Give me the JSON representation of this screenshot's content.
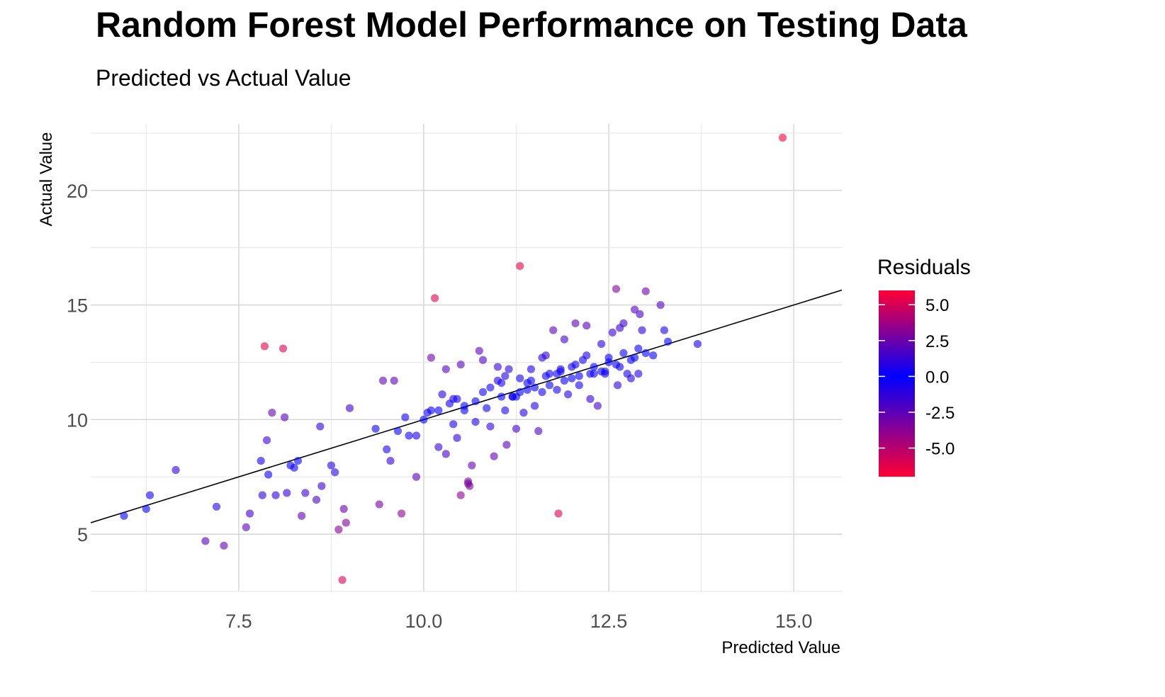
{
  "chart_data": {
    "type": "scatter",
    "title": "Random Forest Model Performance on Testing Data",
    "subtitle": "Predicted vs Actual Value",
    "xlabel": "Predicted Value",
    "ylabel": "Actual Value",
    "xlim": [
      5.5,
      15.65
    ],
    "ylim": [
      2.5,
      22.9
    ],
    "x_ticks": [
      7.5,
      10.0,
      12.5,
      15.0
    ],
    "x_tick_labels": [
      "7.5",
      "10.0",
      "12.5",
      "15.0"
    ],
    "y_ticks": [
      5,
      10,
      15,
      20
    ],
    "y_tick_labels": [
      "5",
      "10",
      "15",
      "20"
    ],
    "grid": true,
    "reference_line": {
      "type": "diagonal",
      "slope": 1,
      "intercept": 0,
      "color": "#000000"
    },
    "legend": {
      "title": "Residuals",
      "placement": "right",
      "labels": [
        "5.0",
        "2.5",
        "0.0",
        "-2.5",
        "-5.0"
      ],
      "label_values": [
        5.0,
        2.5,
        0.0,
        -2.5,
        -5.0
      ],
      "range": [
        -7.0,
        6.0
      ],
      "colors": {
        "high": "#ff0033",
        "mid": "#0000ff",
        "low": "#ff0033"
      }
    },
    "series": [
      {
        "x": [
          5.95,
          6.25,
          6.3,
          6.65,
          7.05,
          7.2,
          7.3,
          7.6,
          7.65,
          7.8,
          7.82,
          7.85,
          7.88,
          7.9,
          7.95,
          8.0,
          8.1,
          8.12,
          8.15,
          8.2,
          8.25,
          8.3,
          8.35,
          8.4,
          8.55,
          8.6,
          8.62,
          8.75,
          8.8,
          8.85,
          8.9,
          8.92,
          8.95,
          9.0,
          9.35,
          9.4,
          9.45,
          9.5,
          9.55,
          9.6,
          9.65,
          9.7,
          9.75,
          9.8,
          9.9,
          10.05,
          10.1,
          10.15,
          10.2,
          10.25,
          10.3,
          10.35,
          10.4,
          10.45,
          10.5,
          10.55,
          10.6,
          10.62,
          10.65,
          10.7,
          10.75,
          10.8,
          10.85,
          10.9,
          10.95,
          11.0,
          11.05,
          11.1,
          11.12,
          11.15,
          11.2,
          11.25,
          11.3,
          11.35,
          11.4,
          11.45,
          11.5,
          11.55,
          11.6,
          11.65,
          11.7,
          11.75,
          11.8,
          11.82,
          11.85,
          11.9,
          11.95,
          12.0,
          12.05,
          12.1,
          12.15,
          12.2,
          12.25,
          12.3,
          12.35,
          12.4,
          12.45,
          12.5,
          12.55,
          12.6,
          12.62,
          12.65,
          12.7,
          12.75,
          12.8,
          12.85,
          12.9,
          12.92,
          12.95,
          13.0,
          13.1,
          13.2,
          13.25,
          13.3,
          13.7,
          14.85,
          11.3,
          10.2,
          10.5,
          10.6,
          10.3,
          10.9,
          11.0,
          11.3,
          11.6,
          12.2,
          12.4,
          11.7,
          11.9,
          12.1,
          12.3,
          12.5,
          12.7,
          12.9,
          11.1,
          11.4,
          10.8,
          10.4,
          10.7,
          11.2,
          11.5,
          11.8,
          12.0,
          12.6,
          12.8,
          13.0,
          9.9,
          10.0,
          10.1,
          10.45,
          10.55,
          11.05,
          11.25,
          11.45,
          11.65,
          11.85,
          12.05,
          12.25,
          12.45,
          12.65,
          12.85
        ],
        "y": [
          5.8,
          6.1,
          6.7,
          7.8,
          4.7,
          6.2,
          4.5,
          5.3,
          5.9,
          8.2,
          6.7,
          13.2,
          9.1,
          7.6,
          10.3,
          6.7,
          13.1,
          10.1,
          6.8,
          8.0,
          7.9,
          8.2,
          5.8,
          6.8,
          6.5,
          9.7,
          7.1,
          8.0,
          7.7,
          5.2,
          3.0,
          6.1,
          5.5,
          10.5,
          9.6,
          6.3,
          11.7,
          8.7,
          8.2,
          11.7,
          9.5,
          5.9,
          10.1,
          9.3,
          7.5,
          10.3,
          12.7,
          15.3,
          8.8,
          11.1,
          8.5,
          10.7,
          9.8,
          9.2,
          12.4,
          10.4,
          7.2,
          7.1,
          8.0,
          9.9,
          13.0,
          12.6,
          10.5,
          9.7,
          8.4,
          11.7,
          11.0,
          10.4,
          8.9,
          12.2,
          11.0,
          9.6,
          11.2,
          10.3,
          11.3,
          12.2,
          10.6,
          9.5,
          12.7,
          12.8,
          11.5,
          13.9,
          11.3,
          5.9,
          12.1,
          13.5,
          11.1,
          12.3,
          14.2,
          11.5,
          12.6,
          14.1,
          10.9,
          12.0,
          10.6,
          13.3,
          12.0,
          12.7,
          13.8,
          15.7,
          11.5,
          14.0,
          14.2,
          12.0,
          11.8,
          14.8,
          12.0,
          14.6,
          13.9,
          15.6,
          12.8,
          15.0,
          13.9,
          13.4,
          13.3,
          22.3,
          16.7,
          10.4,
          6.7,
          7.3,
          12.2,
          11.4,
          12.3,
          11.8,
          11.2,
          12.8,
          12.1,
          12.0,
          11.7,
          11.9,
          12.3,
          12.5,
          12.9,
          13.1,
          11.9,
          11.6,
          11.2,
          10.9,
          10.8,
          11.0,
          11.4,
          12.0,
          11.8,
          12.4,
          12.6,
          12.9,
          9.3,
          10.0,
          10.4,
          10.9,
          10.6,
          11.6,
          11.0,
          11.7,
          11.9,
          12.2,
          12.4,
          12.0,
          12.1,
          12.3,
          12.7
        ]
      }
    ]
  }
}
